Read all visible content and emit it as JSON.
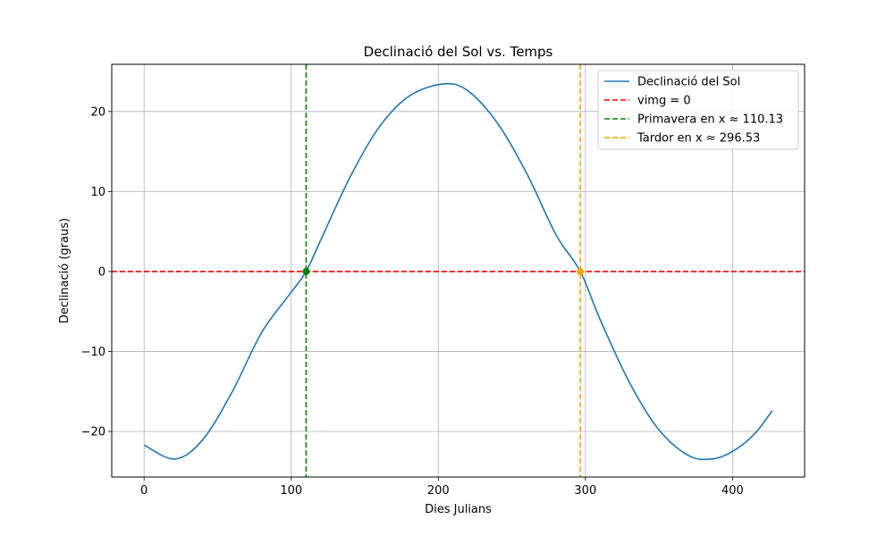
{
  "chart_data": {
    "type": "line",
    "title": "Declinació del Sol vs. Temps",
    "xlabel": "Dies Julians",
    "ylabel": "Declinació (graus)",
    "xlim": [
      -22,
      449
    ],
    "ylim": [
      -25.7,
      25.9
    ],
    "xticks": [
      0,
      100,
      200,
      300,
      400
    ],
    "xtick_labels": [
      "0",
      "100",
      "200",
      "300",
      "400"
    ],
    "yticks": [
      -20,
      -10,
      0,
      10,
      20
    ],
    "ytick_labels": [
      "−20",
      "−10",
      "0",
      "10",
      "20"
    ],
    "grid": true,
    "legend_position": "upper right",
    "series": [
      {
        "name": "Declinació del Sol",
        "style": "solid",
        "color": "#1f77b4",
        "x": [
          0,
          21,
          40,
          60,
          80,
          100,
          110.13,
          120,
          140,
          160,
          180,
          203.3,
          220,
          240,
          260,
          280,
          296.53,
          310,
          330,
          350,
          370,
          386,
          400,
          415,
          427
        ],
        "y": [
          -21.7,
          -23.45,
          -21.0,
          -15.0,
          -7.6,
          -2.6,
          0,
          3.9,
          11.8,
          18.1,
          21.9,
          23.45,
          22.6,
          18.6,
          12.3,
          4.6,
          0,
          -6.0,
          -13.9,
          -19.8,
          -23.0,
          -23.45,
          -22.5,
          -20.3,
          -17.4
        ]
      }
    ],
    "reference_lines": [
      {
        "name": "vimg = 0",
        "orientation": "horizontal",
        "value": 0,
        "style": "dashed",
        "color": "#ff0000"
      },
      {
        "name": "Primavera en x ≈ 110.13",
        "orientation": "vertical",
        "value": 110.13,
        "style": "dashed",
        "color": "#008000"
      },
      {
        "name": "Tardor en x ≈ 296.53",
        "orientation": "vertical",
        "value": 296.53,
        "style": "dashed",
        "color": "#ffa500"
      }
    ],
    "markers": [
      {
        "x": 110.13,
        "y": 0,
        "color": "#008000"
      },
      {
        "x": 296.53,
        "y": 0,
        "color": "#ffa500"
      }
    ],
    "legend": [
      {
        "label": "Declinació del Sol",
        "style": "solid",
        "color": "#1f77b4"
      },
      {
        "label": "vimg = 0",
        "style": "dashed",
        "color": "#ff0000"
      },
      {
        "label": "Primavera en x ≈ 110.13",
        "style": "dashed",
        "color": "#008000"
      },
      {
        "label": "Tardor en x ≈ 296.53",
        "style": "dashed",
        "color": "#ffa500"
      }
    ]
  }
}
